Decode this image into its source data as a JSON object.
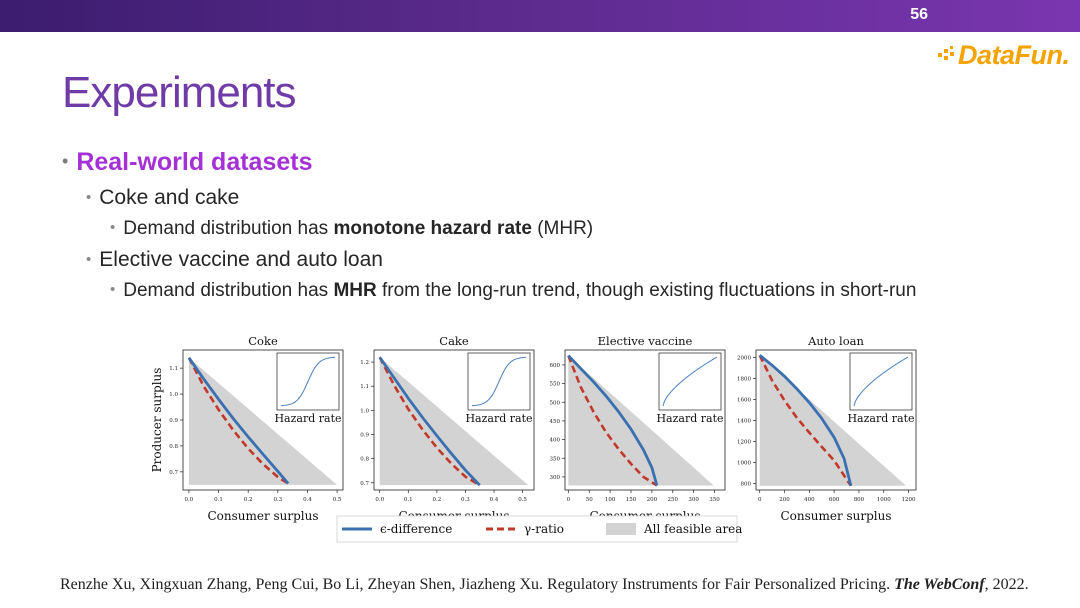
{
  "page_number": "56",
  "logo": {
    "text": "DataFun."
  },
  "title": "Experiments",
  "bullets": {
    "main": "Real-world datasets",
    "sub1": "Coke and cake",
    "sub1_detail": {
      "pre": "Demand distribution has ",
      "bold": "monotone hazard rate",
      "post": " (MHR)"
    },
    "sub2": "Elective vaccine and auto loan",
    "sub2_detail": {
      "pre": "Demand distribution has ",
      "bold": "MHR",
      "post": " from the long-run trend, though existing fluctuations in short-run"
    }
  },
  "citation": {
    "authors": "Renzhe Xu, Xingxuan Zhang, Peng Cui, Bo Li, Zheyan Shen, Jiazheng Xu. Regulatory Instruments for Fair Personalized Pricing. ",
    "venue": "The WebConf",
    "year": ", 2022."
  },
  "colors": {
    "eps": "#3a6fb0",
    "gamma": "#c0392b",
    "feasible": "#d3d3d3",
    "title": "#6f3ba6",
    "accent": "#a531d6"
  },
  "legend": {
    "eps": "ϵ-difference",
    "gamma": "γ-ratio",
    "feasible": "All feasible area"
  },
  "chart_data": [
    {
      "type": "line",
      "title": "Coke",
      "xlabel": "Consumer surplus",
      "ylabel": "Producer surplus",
      "inset_label": "Hazard rate",
      "inset_shape": "sigmoid",
      "xlim": [
        -0.02,
        0.52
      ],
      "ylim": [
        0.63,
        1.17
      ],
      "xticks": [
        0.0,
        0.1,
        0.2,
        0.3,
        0.4,
        0.5
      ],
      "xtick_labels": [
        "0.0",
        "0.1",
        "0.2",
        "0.3",
        "0.4",
        "0.5"
      ],
      "yticks": [
        0.7,
        0.8,
        0.9,
        1.0,
        1.1
      ],
      "ytick_labels": [
        "0.7",
        "0.8",
        "0.9",
        "1.0",
        "1.1"
      ],
      "feasible": [
        [
          0.0,
          1.14
        ],
        [
          0.0,
          0.65
        ],
        [
          0.5,
          0.65
        ]
      ],
      "series": [
        {
          "name": "ϵ-difference",
          "x": [
            0.0,
            0.05,
            0.1,
            0.15,
            0.2,
            0.25,
            0.3,
            0.335
          ],
          "y": [
            1.14,
            1.058,
            0.98,
            0.905,
            0.835,
            0.768,
            0.702,
            0.655
          ]
        },
        {
          "name": "γ-ratio",
          "x": [
            0.0,
            0.05,
            0.1,
            0.15,
            0.2,
            0.25,
            0.3,
            0.335
          ],
          "y": [
            1.14,
            1.03,
            0.94,
            0.86,
            0.79,
            0.73,
            0.68,
            0.655
          ]
        }
      ]
    },
    {
      "type": "line",
      "title": "Cake",
      "xlabel": "Consumer surplus",
      "ylabel": "",
      "inset_label": "Hazard rate",
      "inset_shape": "sigmoid",
      "xlim": [
        -0.02,
        0.54
      ],
      "ylim": [
        0.67,
        1.25
      ],
      "xticks": [
        0.0,
        0.1,
        0.2,
        0.3,
        0.4,
        0.5
      ],
      "xtick_labels": [
        "0.0",
        "0.1",
        "0.2",
        "0.3",
        "0.4",
        "0.5"
      ],
      "yticks": [
        0.7,
        0.8,
        0.9,
        1.0,
        1.1,
        1.2
      ],
      "ytick_labels": [
        "0.7",
        "0.8",
        "0.9",
        "1.0",
        "1.1",
        "1.2"
      ],
      "feasible": [
        [
          0.0,
          1.22
        ],
        [
          0.0,
          0.69
        ],
        [
          0.52,
          0.69
        ]
      ],
      "series": [
        {
          "name": "ϵ-difference",
          "x": [
            0.0,
            0.05,
            0.1,
            0.15,
            0.2,
            0.25,
            0.3,
            0.35
          ],
          "y": [
            1.22,
            1.135,
            1.05,
            0.97,
            0.895,
            0.822,
            0.752,
            0.69
          ]
        },
        {
          "name": "γ-ratio",
          "x": [
            0.0,
            0.05,
            0.1,
            0.15,
            0.2,
            0.25,
            0.3,
            0.35
          ],
          "y": [
            1.22,
            1.105,
            1.005,
            0.92,
            0.845,
            0.78,
            0.725,
            0.69
          ]
        }
      ]
    },
    {
      "type": "line",
      "title": "Elective vaccine",
      "xlabel": "Consumer surplus",
      "ylabel": "",
      "inset_label": "Hazard rate",
      "inset_shape": "concave",
      "xlim": [
        -8,
        375
      ],
      "ylim": [
        265,
        640
      ],
      "xticks": [
        0,
        50,
        100,
        150,
        200,
        250,
        300,
        350
      ],
      "xtick_labels": [
        "0",
        "50",
        "100",
        "150",
        "200",
        "250",
        "300",
        "350"
      ],
      "yticks": [
        300,
        350,
        400,
        450,
        500,
        550,
        600
      ],
      "ytick_labels": [
        "300",
        "350",
        "400",
        "450",
        "500",
        "550",
        "600"
      ],
      "feasible": [
        [
          0,
          625
        ],
        [
          0,
          277
        ],
        [
          348,
          277
        ]
      ],
      "series": [
        {
          "name": "ϵ-difference",
          "x": [
            0,
            30,
            60,
            90,
            120,
            150,
            180,
            200,
            212
          ],
          "y": [
            625,
            590,
            555,
            517,
            475,
            428,
            372,
            325,
            277
          ]
        },
        {
          "name": "γ-ratio",
          "x": [
            0,
            30,
            60,
            90,
            120,
            150,
            180,
            212
          ],
          "y": [
            625,
            540,
            475,
            420,
            375,
            335,
            300,
            277
          ]
        }
      ]
    },
    {
      "type": "line",
      "title": "Auto loan",
      "xlabel": "Consumer surplus",
      "ylabel": "",
      "inset_label": "Hazard rate",
      "inset_shape": "concave",
      "xlim": [
        -30,
        1260
      ],
      "ylim": [
        740,
        2070
      ],
      "xticks": [
        0,
        200,
        400,
        600,
        800,
        1000,
        1200
      ],
      "xtick_labels": [
        "0",
        "200",
        "400",
        "600",
        "800",
        "1000",
        "1200"
      ],
      "yticks": [
        800,
        1000,
        1200,
        1400,
        1600,
        1800,
        2000
      ],
      "ytick_labels": [
        "800",
        "1000",
        "1200",
        "1400",
        "1600",
        "1800",
        "2000"
      ],
      "feasible": [
        [
          0,
          2020
        ],
        [
          0,
          780
        ],
        [
          1180,
          780
        ]
      ],
      "series": [
        {
          "name": "ϵ-difference",
          "x": [
            0,
            100,
            200,
            300,
            400,
            500,
            600,
            680,
            735
          ],
          "y": [
            2020,
            1925,
            1820,
            1700,
            1570,
            1420,
            1240,
            1040,
            780
          ]
        },
        {
          "name": "γ-ratio",
          "x": [
            0,
            100,
            200,
            300,
            400,
            500,
            600,
            735
          ],
          "y": [
            2020,
            1780,
            1590,
            1425,
            1285,
            1150,
            1020,
            780
          ]
        }
      ]
    }
  ]
}
